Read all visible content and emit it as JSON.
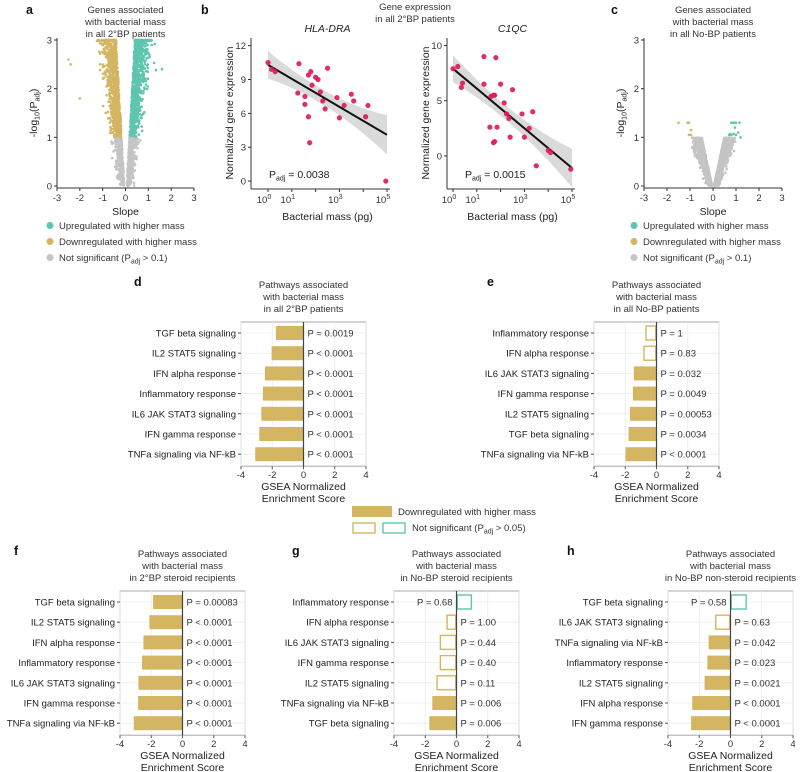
{
  "colors": {
    "up": "#5ec5ae",
    "down": "#d3b562",
    "ns": "#c4c4c4",
    "point": "#de1a5e",
    "band": "#d6d6d6"
  },
  "legend_volcano": {
    "items": [
      {
        "key": "up",
        "parts": [
          "Upregulated with higher mass"
        ]
      },
      {
        "key": "down",
        "parts": [
          "Downregulated with higher mass"
        ]
      },
      {
        "key": "ns",
        "parts": [
          "Not significant (P",
          {
            "sub": "adj"
          },
          " > 0.1)"
        ]
      }
    ]
  },
  "legend_bars": {
    "filled": [
      "Downregulated with higher mass"
    ],
    "open": [
      "Not significant (P",
      {
        "sub": "adj"
      },
      " > 0.05)"
    ]
  },
  "chart_data": [
    {
      "id": "a",
      "type": "scatter",
      "label": "a",
      "title": [
        "Genes associated",
        "with bacterial mass",
        "in all 2°BP patients"
      ],
      "xlabel": "Slope",
      "ylabel": [
        "-log",
        {
          "sub": "10"
        },
        "(P",
        {
          "sub": "adj"
        },
        ")"
      ],
      "xlim": [
        -3,
        3
      ],
      "ylim": [
        0,
        3
      ],
      "xticks": [
        "-3",
        "-2",
        "-1",
        "0",
        "1",
        "2",
        "3"
      ],
      "yticks": [
        "0",
        "1",
        "2",
        "3"
      ],
      "significance_threshold": 1,
      "density": "high"
    },
    {
      "id": "b",
      "type": "scatter",
      "label": "b",
      "title": [
        "Gene expression",
        "in all 2°BP patients"
      ],
      "panels": [
        {
          "gene": "HLA-DRA",
          "xlabel": "Bacterial mass (pg)",
          "ylabel": "Normalized gene expression",
          "ylim": [
            -0.7,
            12.5
          ],
          "yticks": [
            "0",
            "3",
            "6",
            "9",
            "12"
          ],
          "xticks_log10": [
            "0",
            "1",
            "3",
            "5"
          ],
          "annotation": [
            "P",
            {
              "sub": "adj"
            },
            " = 0.0038"
          ],
          "fit": {
            "intercept": 10.3,
            "slope": -1.24
          },
          "points_log10x_y": [
            [
              0,
              10.5
            ],
            [
              0.15,
              9.9
            ],
            [
              0.3,
              9.7
            ],
            [
              1.3,
              10.4
            ],
            [
              1.25,
              7.8
            ],
            [
              1.55,
              7.5
            ],
            [
              1.55,
              6.8
            ],
            [
              1.7,
              9.4
            ],
            [
              1.8,
              9.7
            ],
            [
              1.85,
              8.5
            ],
            [
              1.7,
              5.7
            ],
            [
              1.75,
              3.4
            ],
            [
              2.0,
              9.2
            ],
            [
              2.1,
              9.0
            ],
            [
              2.2,
              7.9
            ],
            [
              2.3,
              7.1
            ],
            [
              2.4,
              6.4
            ],
            [
              2.5,
              10.0
            ],
            [
              2.9,
              7.4
            ],
            [
              3.0,
              5.6
            ],
            [
              3.2,
              6.7
            ],
            [
              3.5,
              7.7
            ],
            [
              3.6,
              7.1
            ],
            [
              4.1,
              5.7
            ],
            [
              4.2,
              6.7
            ],
            [
              4.95,
              0
            ]
          ]
        },
        {
          "gene": "C1QC",
          "xlabel": "Bacterial mass (pg)",
          "ylabel": "Normalized gene expression",
          "ylim": [
            -3,
            10.5
          ],
          "yticks": [
            "0",
            "5",
            "10"
          ],
          "xticks_log10": [
            "0",
            "1",
            "3",
            "5"
          ],
          "annotation": [
            "P",
            {
              "sub": "adj"
            },
            " = 0.0015"
          ],
          "fit": {
            "intercept": 7.9,
            "slope": -1.8
          },
          "points_log10x_y": [
            [
              0,
              7.9
            ],
            [
              0.2,
              8.1
            ],
            [
              0.35,
              6.2
            ],
            [
              0.4,
              6.6
            ],
            [
              1.3,
              9.0
            ],
            [
              1.3,
              6.5
            ],
            [
              1.6,
              5.4
            ],
            [
              1.7,
              5.5
            ],
            [
              1.8,
              8.9
            ],
            [
              1.75,
              5.5
            ],
            [
              1.55,
              2.6
            ],
            [
              1.85,
              2.6
            ],
            [
              1.7,
              1.2
            ],
            [
              1.75,
              1.3
            ],
            [
              2.0,
              6.5
            ],
            [
              2.15,
              4.8
            ],
            [
              2.25,
              3.8
            ],
            [
              2.35,
              3.4
            ],
            [
              2.5,
              6.0
            ],
            [
              2.4,
              1.7
            ],
            [
              2.9,
              3.8
            ],
            [
              3.0,
              1.7
            ],
            [
              3.35,
              4.0
            ],
            [
              3.2,
              2.5
            ],
            [
              3.5,
              -0.9
            ],
            [
              4.0,
              0.5
            ],
            [
              4.1,
              0.3
            ],
            [
              4.95,
              -1.2
            ]
          ]
        }
      ]
    },
    {
      "id": "c",
      "type": "scatter",
      "label": "c",
      "title": [
        "Genes associated",
        "with bacterial mass",
        "in all No-BP patients"
      ],
      "xlabel": "Slope",
      "ylabel": [
        "-log",
        {
          "sub": "10"
        },
        "(P",
        {
          "sub": "adj"
        },
        ")"
      ],
      "xlim": [
        -3,
        3
      ],
      "ylim": [
        0,
        3
      ],
      "xticks": [
        "-3",
        "-2",
        "-1",
        "0",
        "1",
        "2",
        "3"
      ],
      "yticks": [
        "0",
        "1",
        "2",
        "3"
      ],
      "significance_threshold": 1,
      "density": "low"
    },
    {
      "id": "d",
      "type": "bar",
      "label": "d",
      "title": [
        "Pathways associated",
        "with bacterial mass",
        "in all 2°BP patients"
      ],
      "xlabel": [
        "GSEA Normalized",
        "Enrichment Score"
      ],
      "xlim": [
        -4,
        4
      ],
      "xticks": [
        "-4",
        "-2",
        "0",
        "2",
        "4"
      ],
      "bars": [
        {
          "pathway": "TGF beta signaling",
          "nes": -1.77,
          "p": "P = 0.0019",
          "sig": true
        },
        {
          "pathway": "IL2 STAT5 signaling",
          "nes": -2.04,
          "p": "P < 0.0001",
          "sig": true
        },
        {
          "pathway": "IFN alpha response",
          "nes": -2.47,
          "p": "P < 0.0001",
          "sig": true
        },
        {
          "pathway": "Inflammatory response",
          "nes": -2.6,
          "p": "P < 0.0001",
          "sig": true
        },
        {
          "pathway": "IL6 JAK STAT3 signaling",
          "nes": -2.7,
          "p": "P < 0.0001",
          "sig": true
        },
        {
          "pathway": "IFN gamma response",
          "nes": -2.83,
          "p": "P < 0.0001",
          "sig": true
        },
        {
          "pathway": "TNFa signaling via NF-kB",
          "nes": -3.09,
          "p": "P < 0.0001",
          "sig": true
        }
      ]
    },
    {
      "id": "e",
      "type": "bar",
      "label": "e",
      "title": [
        "Pathways associated",
        "with bacterial mass",
        "in all No-BP patients"
      ],
      "xlabel": [
        "GSEA Normalized",
        "Enrichment Score"
      ],
      "xlim": [
        -4,
        4
      ],
      "xticks": [
        "-4",
        "-2",
        "0",
        "2",
        "4"
      ],
      "bars": [
        {
          "pathway": "Inflammatory response",
          "nes": -0.72,
          "p": "P = 1",
          "sig": false
        },
        {
          "pathway": "IFN alpha response",
          "nes": -0.85,
          "p": "P = 0.83",
          "sig": false
        },
        {
          "pathway": "IL6 JAK STAT3 signaling",
          "nes": -1.45,
          "p": "P = 0.032",
          "sig": true
        },
        {
          "pathway": "IFN gamma response",
          "nes": -1.51,
          "p": "P = 0.0049",
          "sig": true
        },
        {
          "pathway": "IL2 STAT5 signaling",
          "nes": -1.7,
          "p": "P = 0.00053",
          "sig": true
        },
        {
          "pathway": "TGF beta signaling",
          "nes": -1.79,
          "p": "P = 0.0034",
          "sig": true
        },
        {
          "pathway": "TNFa signaling via NF-kB",
          "nes": -1.98,
          "p": "P < 0.0001",
          "sig": true
        }
      ]
    },
    {
      "id": "f",
      "type": "bar",
      "label": "f",
      "title": [
        "Pathways associated",
        "with bacterial mass",
        "in 2°BP steroid recipients"
      ],
      "xlabel": [
        "GSEA Normalized",
        "Enrichment Score"
      ],
      "xlim": [
        -4,
        4
      ],
      "xticks": [
        "-4",
        "-2",
        "0",
        "2",
        "4"
      ],
      "bars": [
        {
          "pathway": "TGF beta signaling",
          "nes": -1.88,
          "p": "P = 0.00083",
          "sig": true
        },
        {
          "pathway": "IL2 STAT5 signaling",
          "nes": -2.12,
          "p": "P < 0.0001",
          "sig": true
        },
        {
          "pathway": "IFN alpha response",
          "nes": -2.5,
          "p": "P < 0.0001",
          "sig": true
        },
        {
          "pathway": "Inflammatory response",
          "nes": -2.59,
          "p": "P < 0.0001",
          "sig": true
        },
        {
          "pathway": "IL6 JAK STAT3 signaling",
          "nes": -2.82,
          "p": "P < 0.0001",
          "sig": true
        },
        {
          "pathway": "IFN gamma response",
          "nes": -2.84,
          "p": "P < 0.0001",
          "sig": true
        },
        {
          "pathway": "TNFa signaling via NF-kB",
          "nes": -3.12,
          "p": "P < 0.0001",
          "sig": true
        }
      ]
    },
    {
      "id": "g",
      "type": "bar",
      "label": "g",
      "title": [
        "Pathways associated",
        "with bacterial mass",
        "in No-BP steroid recipients"
      ],
      "xlabel": [
        "GSEA Normalized",
        "Enrichment Score"
      ],
      "xlim": [
        -4,
        4
      ],
      "xticks": [
        "-4",
        "-2",
        "0",
        "2",
        "4"
      ],
      "bars": [
        {
          "pathway": "Inflammatory response",
          "nes": 1.0,
          "p": "P = 0.68",
          "sig": false
        },
        {
          "pathway": "IFN alpha response",
          "nes": -0.65,
          "p": "P = 1.00",
          "sig": false
        },
        {
          "pathway": "IL6 JAK STAT3 signaling",
          "nes": -1.08,
          "p": "P = 0.44",
          "sig": false
        },
        {
          "pathway": "IFN gamma response",
          "nes": -1.08,
          "p": "P = 0.40",
          "sig": false
        },
        {
          "pathway": "IL2 STAT5 signaling",
          "nes": -1.29,
          "p": "P = 0.11",
          "sig": false
        },
        {
          "pathway": "TNFa signaling via NF-kB",
          "nes": -1.55,
          "p": "P = 0.006",
          "sig": true
        },
        {
          "pathway": "TGF beta signaling",
          "nes": -1.74,
          "p": "P = 0.006",
          "sig": true
        }
      ]
    },
    {
      "id": "h",
      "type": "bar",
      "label": "h",
      "title": [
        "Pathways associated",
        "with bacterial mass",
        "in No-BP non-steroid recipients"
      ],
      "xlabel": [
        "GSEA Normalized",
        "Enrichment Score"
      ],
      "xlim": [
        -4,
        4
      ],
      "xticks": [
        "-4",
        "-2",
        "0",
        "2",
        "4"
      ],
      "bars": [
        {
          "pathway": "TGF beta signaling",
          "nes": 1.05,
          "p": "P = 0.58",
          "sig": false
        },
        {
          "pathway": "IL6 JAK STAT3 signaling",
          "nes": -0.99,
          "p": "P = 0.63",
          "sig": false
        },
        {
          "pathway": "TNFa signaling via NF-kB",
          "nes": -1.4,
          "p": "P = 0.042",
          "sig": true
        },
        {
          "pathway": "Inflammatory response",
          "nes": -1.48,
          "p": "P = 0.023",
          "sig": true
        },
        {
          "pathway": "IL2 STAT5 signaling",
          "nes": -1.66,
          "p": "P = 0.0021",
          "sig": true
        },
        {
          "pathway": "IFN alpha response",
          "nes": -2.45,
          "p": "P < 0.0001",
          "sig": true
        },
        {
          "pathway": "IFN gamma response",
          "nes": -2.52,
          "p": "P < 0.0001",
          "sig": true
        }
      ]
    }
  ]
}
